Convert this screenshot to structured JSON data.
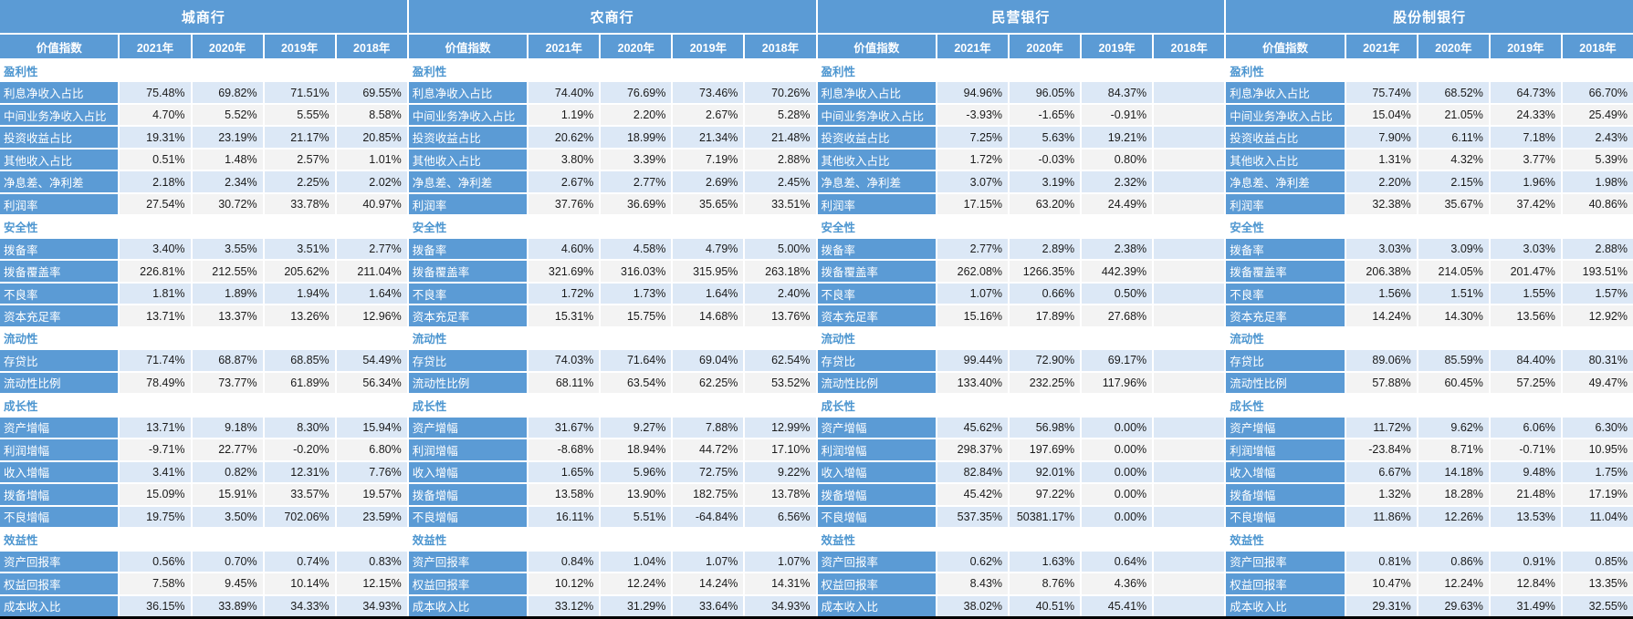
{
  "colors": {
    "header_blue": "#5B9BD5",
    "row_light_blue": "#DCE8F6",
    "row_light_gray": "#F3F3F3",
    "category_text_blue": "#4D96D0",
    "bottom_border": "#000000"
  },
  "sections": [
    {
      "title": "城商行",
      "columns": [
        "价值指数",
        "2021年",
        "2020年",
        "2019年",
        "2018年"
      ],
      "groups": [
        {
          "category": "盈利性",
          "rows": [
            {
              "label": "利息净收入占比",
              "values": [
                "75.48%",
                "69.82%",
                "71.51%",
                "69.55%"
              ]
            },
            {
              "label": "中间业务净收入占比",
              "values": [
                "4.70%",
                "5.52%",
                "5.55%",
                "8.58%"
              ]
            },
            {
              "label": "投资收益占比",
              "values": [
                "19.31%",
                "23.19%",
                "21.17%",
                "20.85%"
              ]
            },
            {
              "label": "其他收入占比",
              "values": [
                "0.51%",
                "1.48%",
                "2.57%",
                "1.01%"
              ]
            },
            {
              "label": "净息差、净利差",
              "values": [
                "2.18%",
                "2.34%",
                "2.25%",
                "2.02%"
              ]
            },
            {
              "label": "利润率",
              "values": [
                "27.54%",
                "30.72%",
                "33.78%",
                "40.97%"
              ]
            }
          ]
        },
        {
          "category": "安全性",
          "rows": [
            {
              "label": "拨备率",
              "values": [
                "3.40%",
                "3.55%",
                "3.51%",
                "2.77%"
              ]
            },
            {
              "label": "拨备覆盖率",
              "values": [
                "226.81%",
                "212.55%",
                "205.62%",
                "211.04%"
              ]
            },
            {
              "label": "不良率",
              "values": [
                "1.81%",
                "1.89%",
                "1.94%",
                "1.64%"
              ]
            },
            {
              "label": "资本充足率",
              "values": [
                "13.71%",
                "13.37%",
                "13.26%",
                "12.96%"
              ]
            }
          ]
        },
        {
          "category": "流动性",
          "rows": [
            {
              "label": "存贷比",
              "values": [
                "71.74%",
                "68.87%",
                "68.85%",
                "54.49%"
              ]
            },
            {
              "label": "流动性比例",
              "values": [
                "78.49%",
                "73.77%",
                "61.89%",
                "56.34%"
              ]
            }
          ]
        },
        {
          "category": "成长性",
          "rows": [
            {
              "label": "资产增幅",
              "values": [
                "13.71%",
                "9.18%",
                "8.30%",
                "15.94%"
              ]
            },
            {
              "label": "利润增幅",
              "values": [
                "-9.71%",
                "22.77%",
                "-0.20%",
                "6.80%"
              ]
            },
            {
              "label": "收入增幅",
              "values": [
                "3.41%",
                "0.82%",
                "12.31%",
                "7.76%"
              ]
            },
            {
              "label": "拨备增幅",
              "values": [
                "15.09%",
                "15.91%",
                "33.57%",
                "19.57%"
              ]
            },
            {
              "label": "不良增幅",
              "values": [
                "19.75%",
                "3.50%",
                "702.06%",
                "23.59%"
              ]
            }
          ]
        },
        {
          "category": "效益性",
          "rows": [
            {
              "label": "资产回报率",
              "values": [
                "0.56%",
                "0.70%",
                "0.74%",
                "0.83%"
              ]
            },
            {
              "label": "权益回报率",
              "values": [
                "7.58%",
                "9.45%",
                "10.14%",
                "12.15%"
              ]
            },
            {
              "label": "成本收入比",
              "values": [
                "36.15%",
                "33.89%",
                "34.33%",
                "34.93%"
              ]
            }
          ]
        }
      ]
    },
    {
      "title": "农商行",
      "columns": [
        "价值指数",
        "2021年",
        "2020年",
        "2019年",
        "2018年"
      ],
      "groups": [
        {
          "category": "盈利性",
          "rows": [
            {
              "label": "利息净收入占比",
              "values": [
                "74.40%",
                "76.69%",
                "73.46%",
                "70.26%"
              ]
            },
            {
              "label": "中间业务净收入占比",
              "values": [
                "1.19%",
                "2.20%",
                "2.67%",
                "5.28%"
              ]
            },
            {
              "label": "投资收益占比",
              "values": [
                "20.62%",
                "18.99%",
                "21.34%",
                "21.48%"
              ]
            },
            {
              "label": "其他收入占比",
              "values": [
                "3.80%",
                "3.39%",
                "7.19%",
                "2.88%"
              ]
            },
            {
              "label": "净息差、净利差",
              "values": [
                "2.67%",
                "2.77%",
                "2.69%",
                "2.45%"
              ]
            },
            {
              "label": "利润率",
              "values": [
                "37.76%",
                "36.69%",
                "35.65%",
                "33.51%"
              ]
            }
          ]
        },
        {
          "category": "安全性",
          "rows": [
            {
              "label": "拨备率",
              "values": [
                "4.60%",
                "4.58%",
                "4.79%",
                "5.00%"
              ]
            },
            {
              "label": "拨备覆盖率",
              "values": [
                "321.69%",
                "316.03%",
                "315.95%",
                "263.18%"
              ]
            },
            {
              "label": "不良率",
              "values": [
                "1.72%",
                "1.73%",
                "1.64%",
                "2.40%"
              ]
            },
            {
              "label": "资本充足率",
              "values": [
                "15.31%",
                "15.75%",
                "14.68%",
                "13.76%"
              ]
            }
          ]
        },
        {
          "category": "流动性",
          "rows": [
            {
              "label": "存贷比",
              "values": [
                "74.03%",
                "71.64%",
                "69.04%",
                "62.54%"
              ]
            },
            {
              "label": "流动性比例",
              "values": [
                "68.11%",
                "63.54%",
                "62.25%",
                "53.52%"
              ]
            }
          ]
        },
        {
          "category": "成长性",
          "rows": [
            {
              "label": "资产增幅",
              "values": [
                "31.67%",
                "9.27%",
                "7.88%",
                "12.99%"
              ]
            },
            {
              "label": "利润增幅",
              "values": [
                "-8.68%",
                "18.94%",
                "44.72%",
                "17.10%"
              ]
            },
            {
              "label": "收入增幅",
              "values": [
                "1.65%",
                "5.96%",
                "72.75%",
                "9.22%"
              ]
            },
            {
              "label": "拨备增幅",
              "values": [
                "13.58%",
                "13.90%",
                "182.75%",
                "13.78%"
              ]
            },
            {
              "label": "不良增幅",
              "values": [
                "16.11%",
                "5.51%",
                "-64.84%",
                "6.56%"
              ]
            }
          ]
        },
        {
          "category": "效益性",
          "rows": [
            {
              "label": "资产回报率",
              "values": [
                "0.84%",
                "1.04%",
                "1.07%",
                "1.07%"
              ]
            },
            {
              "label": "权益回报率",
              "values": [
                "10.12%",
                "12.24%",
                "14.24%",
                "14.31%"
              ]
            },
            {
              "label": "成本收入比",
              "values": [
                "33.12%",
                "31.29%",
                "33.64%",
                "34.93%"
              ]
            }
          ]
        }
      ]
    },
    {
      "title": "民营银行",
      "columns": [
        "价值指数",
        "2021年",
        "2020年",
        "2019年",
        "2018年"
      ],
      "groups": [
        {
          "category": "盈利性",
          "rows": [
            {
              "label": "利息净收入占比",
              "values": [
                "94.96%",
                "96.05%",
                "84.37%",
                ""
              ]
            },
            {
              "label": "中间业务净收入占比",
              "values": [
                "-3.93%",
                "-1.65%",
                "-0.91%",
                ""
              ]
            },
            {
              "label": "投资收益占比",
              "values": [
                "7.25%",
                "5.63%",
                "19.21%",
                ""
              ]
            },
            {
              "label": "其他收入占比",
              "values": [
                "1.72%",
                "-0.03%",
                "0.80%",
                ""
              ]
            },
            {
              "label": "净息差、净利差",
              "values": [
                "3.07%",
                "3.19%",
                "2.32%",
                ""
              ]
            },
            {
              "label": "利润率",
              "values": [
                "17.15%",
                "63.20%",
                "24.49%",
                ""
              ]
            }
          ]
        },
        {
          "category": "安全性",
          "rows": [
            {
              "label": "拨备率",
              "values": [
                "2.77%",
                "2.89%",
                "2.38%",
                ""
              ]
            },
            {
              "label": "拨备覆盖率",
              "values": [
                "262.08%",
                "1266.35%",
                "442.39%",
                ""
              ]
            },
            {
              "label": "不良率",
              "values": [
                "1.07%",
                "0.66%",
                "0.50%",
                ""
              ]
            },
            {
              "label": "资本充足率",
              "values": [
                "15.16%",
                "17.89%",
                "27.68%",
                ""
              ]
            }
          ]
        },
        {
          "category": "流动性",
          "rows": [
            {
              "label": "存贷比",
              "values": [
                "99.44%",
                "72.90%",
                "69.17%",
                ""
              ]
            },
            {
              "label": "流动性比例",
              "values": [
                "133.40%",
                "232.25%",
                "117.96%",
                ""
              ]
            }
          ]
        },
        {
          "category": "成长性",
          "rows": [
            {
              "label": "资产增幅",
              "values": [
                "45.62%",
                "56.98%",
                "0.00%",
                ""
              ]
            },
            {
              "label": "利润增幅",
              "values": [
                "298.37%",
                "197.69%",
                "0.00%",
                ""
              ]
            },
            {
              "label": "收入增幅",
              "values": [
                "82.84%",
                "92.01%",
                "0.00%",
                ""
              ]
            },
            {
              "label": "拨备增幅",
              "values": [
                "45.42%",
                "97.22%",
                "0.00%",
                ""
              ]
            },
            {
              "label": "不良增幅",
              "values": [
                "537.35%",
                "50381.17%",
                "0.00%",
                ""
              ]
            }
          ]
        },
        {
          "category": "效益性",
          "rows": [
            {
              "label": "资产回报率",
              "values": [
                "0.62%",
                "1.63%",
                "0.64%",
                ""
              ]
            },
            {
              "label": "权益回报率",
              "values": [
                "8.43%",
                "8.76%",
                "4.36%",
                ""
              ]
            },
            {
              "label": "成本收入比",
              "values": [
                "38.02%",
                "40.51%",
                "45.41%",
                ""
              ]
            }
          ]
        }
      ]
    },
    {
      "title": "股份制银行",
      "columns": [
        "价值指数",
        "2021年",
        "2020年",
        "2019年",
        "2018年"
      ],
      "groups": [
        {
          "category": "盈利性",
          "rows": [
            {
              "label": "利息净收入占比",
              "values": [
                "75.74%",
                "68.52%",
                "64.73%",
                "66.70%"
              ]
            },
            {
              "label": "中间业务净收入占比",
              "values": [
                "15.04%",
                "21.05%",
                "24.33%",
                "25.49%"
              ]
            },
            {
              "label": "投资收益占比",
              "values": [
                "7.90%",
                "6.11%",
                "7.18%",
                "2.43%"
              ]
            },
            {
              "label": "其他收入占比",
              "values": [
                "1.31%",
                "4.32%",
                "3.77%",
                "5.39%"
              ]
            },
            {
              "label": "净息差、净利差",
              "values": [
                "2.20%",
                "2.15%",
                "1.96%",
                "1.98%"
              ]
            },
            {
              "label": "利润率",
              "values": [
                "32.38%",
                "35.67%",
                "37.42%",
                "40.86%"
              ]
            }
          ]
        },
        {
          "category": "安全性",
          "rows": [
            {
              "label": "拨备率",
              "values": [
                "3.03%",
                "3.09%",
                "3.03%",
                "2.88%"
              ]
            },
            {
              "label": "拨备覆盖率",
              "values": [
                "206.38%",
                "214.05%",
                "201.47%",
                "193.51%"
              ]
            },
            {
              "label": "不良率",
              "values": [
                "1.56%",
                "1.51%",
                "1.55%",
                "1.57%"
              ]
            },
            {
              "label": "资本充足率",
              "values": [
                "14.24%",
                "14.30%",
                "13.56%",
                "12.92%"
              ]
            }
          ]
        },
        {
          "category": "流动性",
          "rows": [
            {
              "label": "存贷比",
              "values": [
                "89.06%",
                "85.59%",
                "84.40%",
                "80.31%"
              ]
            },
            {
              "label": "流动性比例",
              "values": [
                "57.88%",
                "60.45%",
                "57.25%",
                "49.47%"
              ]
            }
          ]
        },
        {
          "category": "成长性",
          "rows": [
            {
              "label": "资产增幅",
              "values": [
                "11.72%",
                "9.62%",
                "6.06%",
                "6.30%"
              ]
            },
            {
              "label": "利润增幅",
              "values": [
                "-23.84%",
                "8.71%",
                "-0.71%",
                "10.95%"
              ]
            },
            {
              "label": "收入增幅",
              "values": [
                "6.67%",
                "14.18%",
                "9.48%",
                "1.75%"
              ]
            },
            {
              "label": "拨备增幅",
              "values": [
                "1.32%",
                "18.28%",
                "21.48%",
                "17.19%"
              ]
            },
            {
              "label": "不良增幅",
              "values": [
                "11.86%",
                "12.26%",
                "13.53%",
                "11.04%"
              ]
            }
          ]
        },
        {
          "category": "效益性",
          "rows": [
            {
              "label": "资产回报率",
              "values": [
                "0.81%",
                "0.86%",
                "0.91%",
                "0.85%"
              ]
            },
            {
              "label": "权益回报率",
              "values": [
                "10.47%",
                "12.24%",
                "12.84%",
                "13.35%"
              ]
            },
            {
              "label": "成本收入比",
              "values": [
                "29.31%",
                "29.63%",
                "31.49%",
                "32.55%"
              ]
            }
          ]
        }
      ]
    }
  ]
}
